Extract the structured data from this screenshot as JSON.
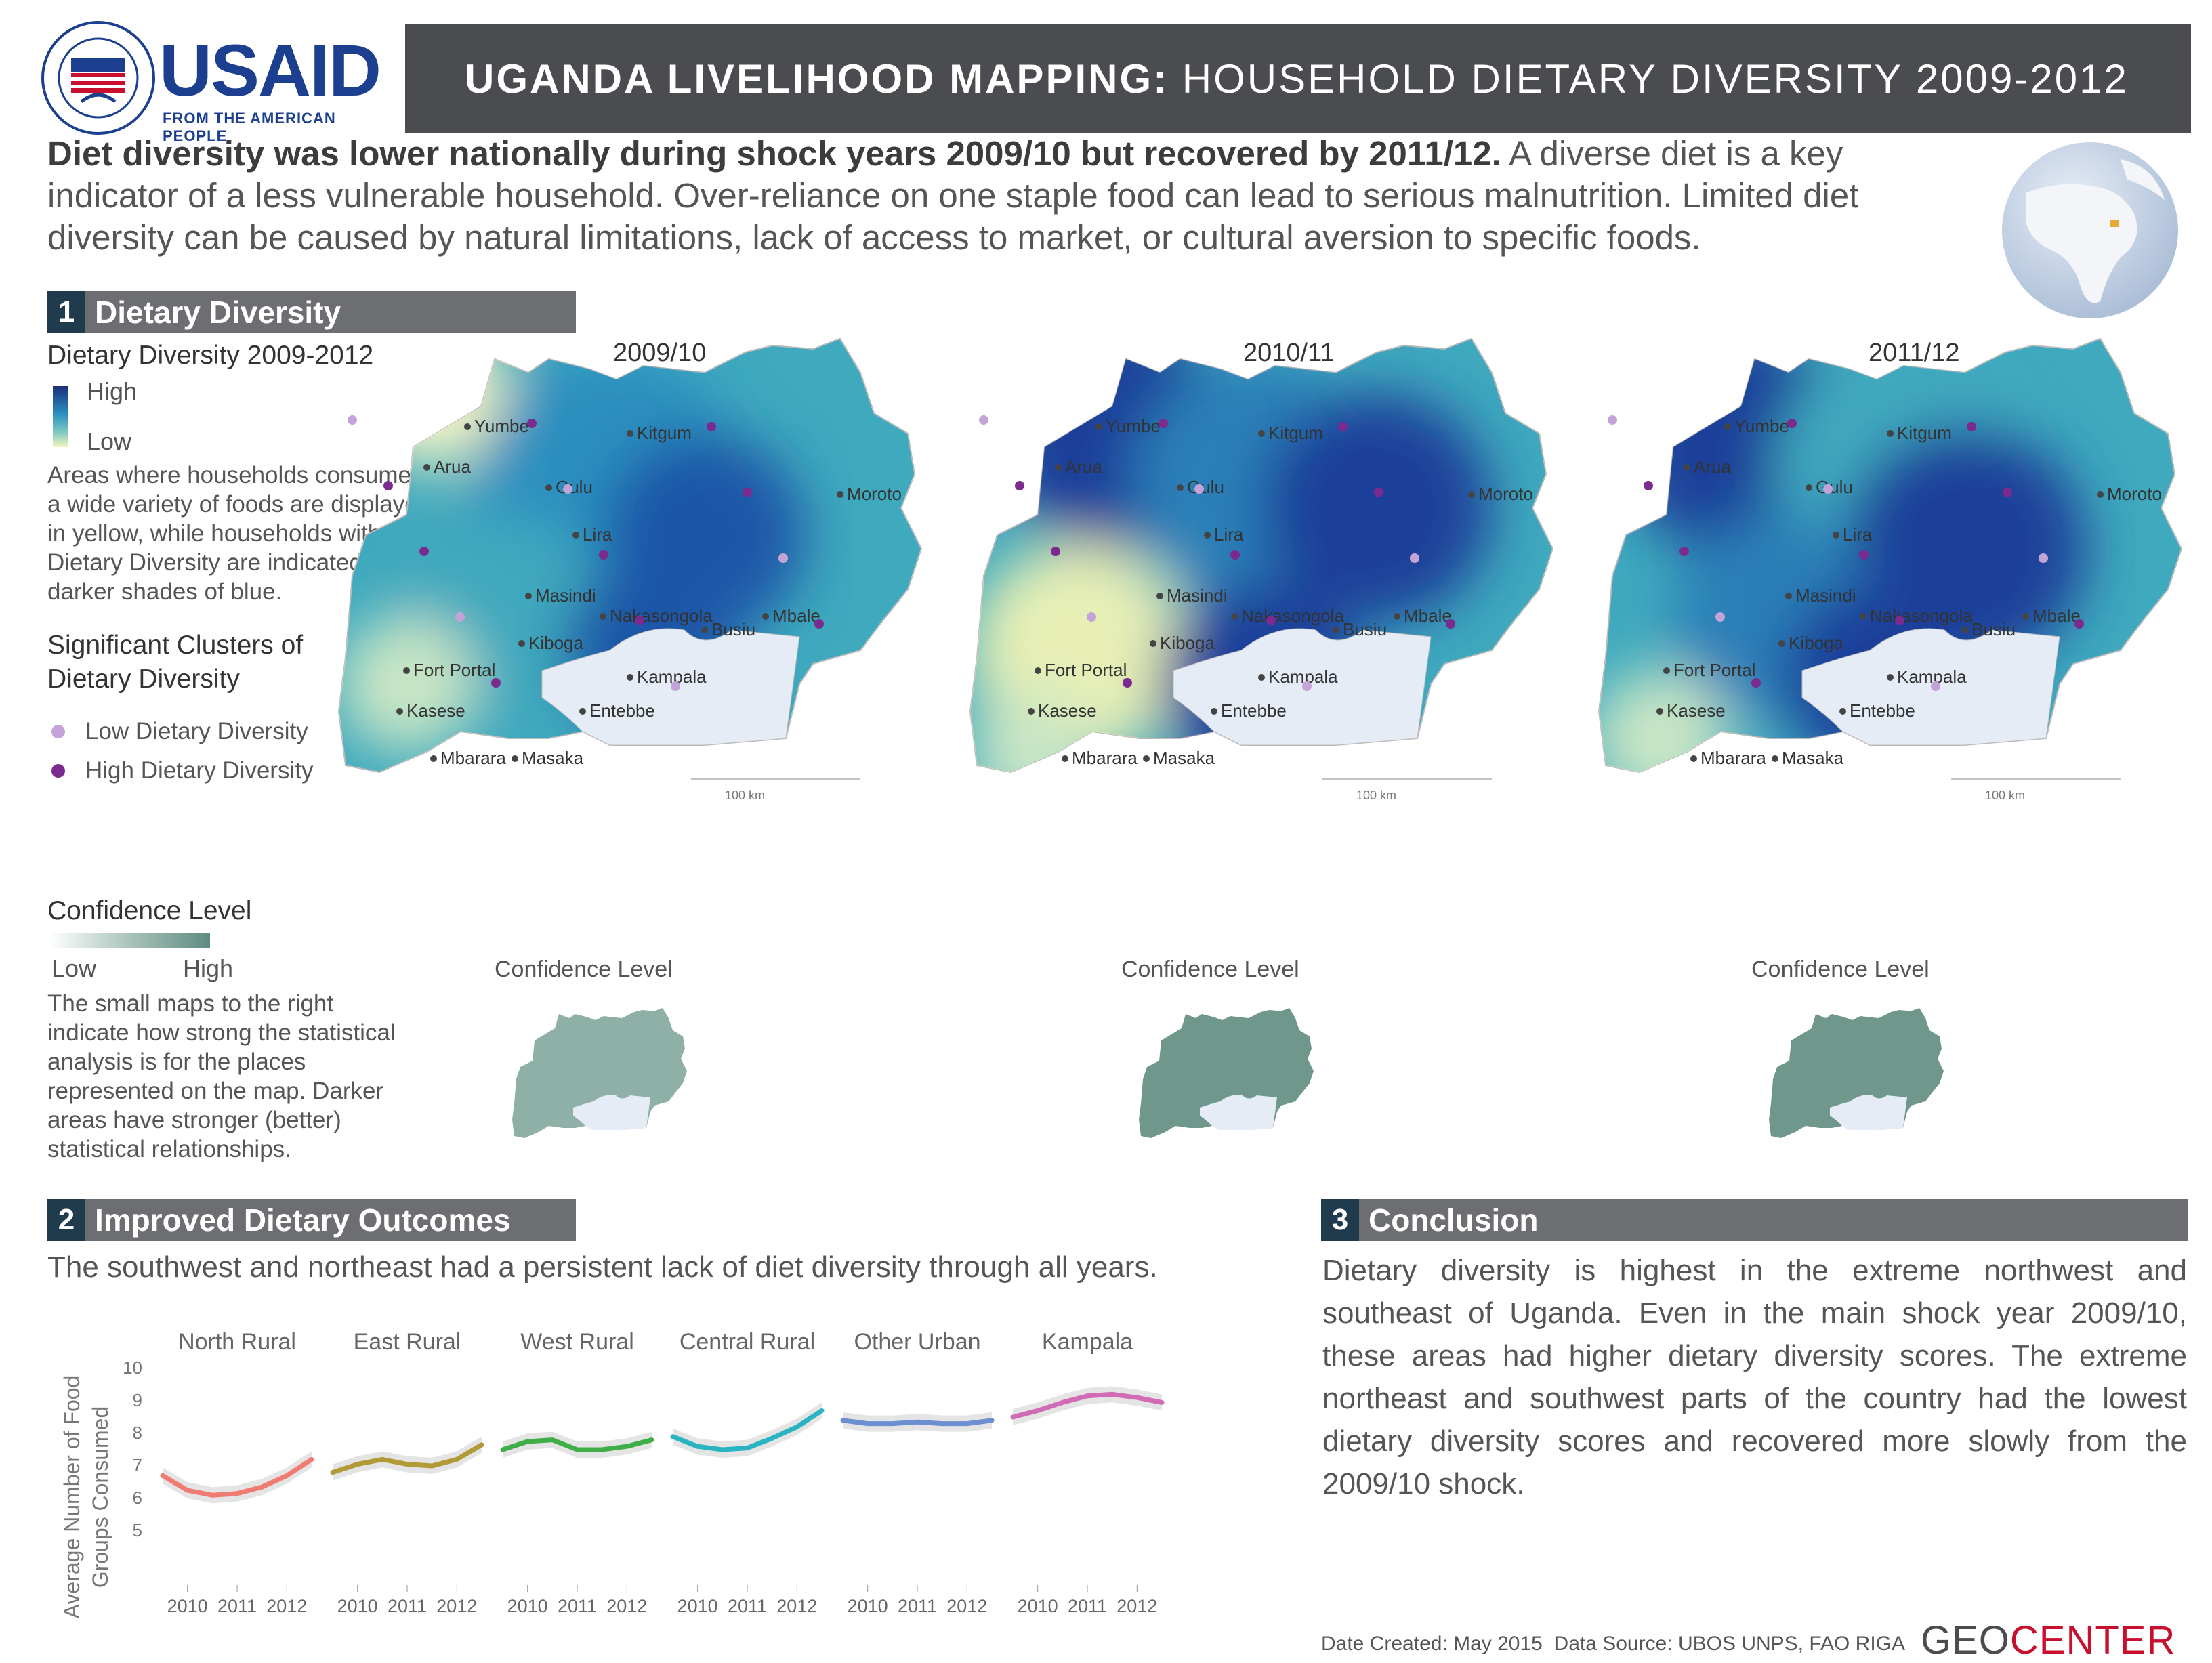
{
  "header": {
    "logo_acronym": "USAID",
    "logo_tagline": "FROM THE AMERICAN PEOPLE",
    "seal_text": "UNITED STATES AGENCY FOR INTERNATIONAL DEVELOPMENT",
    "title_bold": "UGANDA LIVELIHOOD MAPPING:",
    "title_rest": " HOUSEHOLD DIETARY DIVERSITY 2009-2012"
  },
  "intro": {
    "lead": "Diet diversity was lower nationally during shock years 2009/10 but recovered by 2011/12.",
    "body": " A diverse diet is a key indicator of a less vulnerable household. Over-reliance on one staple food can lead to serious malnutrition. Limited diet diversity can be caused by natural limitations, lack of access to market, or cultural aversion to specific foods."
  },
  "section1": {
    "number": "1",
    "title": "Dietary Diversity",
    "legend_title": "Dietary Diversity 2009-2012",
    "legend_high": "High",
    "legend_low": "Low",
    "legend_desc": "Areas where households consumed a wide variety of foods are displayed in yellow, while households with less Dietary Diversity are indicated in darker shades of blue.",
    "clusters_title": "Significant Clusters of Dietary Diversity",
    "cluster_low": "Low Dietary Diversity",
    "cluster_high": "High Dietary Diversity",
    "confidence_title": "Confidence Level",
    "confidence_low": "Low",
    "confidence_high": "High",
    "confidence_desc": "The small maps to the right indicate how strong the statistical analysis is for the places represented on the map. Darker areas have stronger (better) statistical relationships.",
    "maps": [
      {
        "year": "2009/10",
        "confidence_label": "Confidence Level",
        "scale": "100 km"
      },
      {
        "year": "2010/11",
        "confidence_label": "Confidence Level",
        "scale": "100 km"
      },
      {
        "year": "2011/12",
        "confidence_label": "Confidence Level",
        "scale": "100 km"
      }
    ],
    "cities": [
      "Yumbe",
      "Kitgum",
      "Arua",
      "Gulu",
      "Moroto",
      "Lira",
      "Masindi",
      "Nakasongola",
      "Mbale",
      "Busiu",
      "Kiboga",
      "Fort Portal",
      "Kampala",
      "Kasese",
      "Entebbe",
      "Mbarara",
      "Masaka"
    ],
    "colors": {
      "dark_blue": "#1f3f9a",
      "mid_blue": "#2a7fb8",
      "teal": "#3fa9be",
      "yellow": "#f1f3b8",
      "cluster_low": "#c4a3d8",
      "cluster_high": "#7b2a8e",
      "confidence": "#5f8b80"
    }
  },
  "section2": {
    "number": "2",
    "title": "Improved Dietary Outcomes",
    "subtitle": "The southwest and northeast had a persistent lack of diet diversity through all years.",
    "chart_data": {
      "type": "line",
      "ylabel": "Average Number of Food Groups Consumed",
      "ylim": [
        5,
        10
      ],
      "yticks": [
        "10",
        "9",
        "8",
        "7",
        "6",
        "5"
      ],
      "xticks": [
        "2010",
        "2011",
        "2012"
      ],
      "x": [
        2009.5,
        2010,
        2010.5,
        2011,
        2011.5,
        2012,
        2012.5
      ],
      "series": [
        {
          "name": "North Rural",
          "color": "#ef7b72",
          "values": [
            6.7,
            6.25,
            6.1,
            6.15,
            6.35,
            6.7,
            7.2
          ]
        },
        {
          "name": "East Rural",
          "color": "#b29a37",
          "values": [
            6.8,
            7.05,
            7.2,
            7.05,
            7.0,
            7.2,
            7.65
          ]
        },
        {
          "name": "West Rural",
          "color": "#3fae49",
          "values": [
            7.5,
            7.75,
            7.8,
            7.5,
            7.5,
            7.6,
            7.8
          ]
        },
        {
          "name": "Central Rural",
          "color": "#2ab3c0",
          "values": [
            7.9,
            7.6,
            7.5,
            7.55,
            7.85,
            8.2,
            8.7
          ]
        },
        {
          "name": "Other Urban",
          "color": "#6b8fd1",
          "values": [
            8.4,
            8.3,
            8.3,
            8.35,
            8.3,
            8.3,
            8.4
          ]
        },
        {
          "name": "Kampala",
          "color": "#d16bb5",
          "values": [
            8.5,
            8.7,
            8.95,
            9.15,
            9.2,
            9.1,
            8.95
          ]
        }
      ]
    }
  },
  "section3": {
    "number": "3",
    "title": "Conclusion",
    "body": "Dietary diversity is highest in the extreme northwest and southeast of Uganda. Even in the main shock year 2009/10, these areas had higher dietary diversity scores. The extreme northeast and southwest parts of the country had the lowest dietary diversity scores and recovered more slowly from the 2009/10 shock."
  },
  "footer": {
    "date_created": "Date Created: May 2015",
    "data_source": "Data Source: UBOS UNPS, FAO RIGA",
    "brand_geo": "GEO",
    "brand_center": "CENTER"
  }
}
